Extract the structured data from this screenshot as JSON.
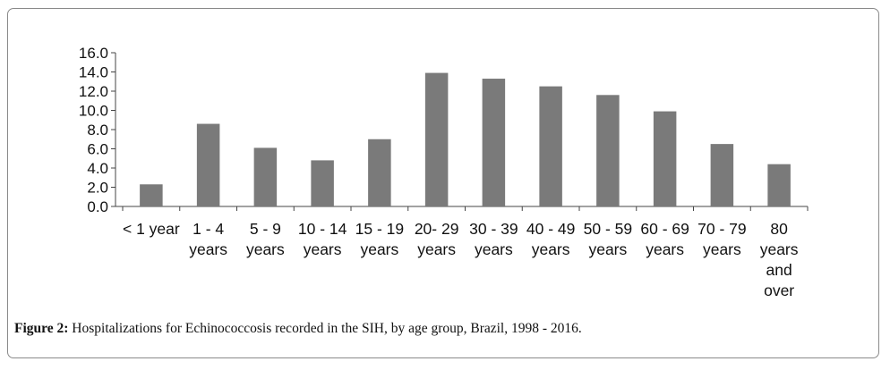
{
  "chart_data": {
    "type": "bar",
    "categories": [
      "< 1 year",
      "1 - 4 years",
      "5 - 9 years",
      "10 - 14 years",
      "15 - 19 years",
      "20- 29 years",
      "30 - 39 years",
      "40 - 49 years",
      "50 - 59 years",
      "60 - 69 years",
      "70 - 79 years",
      "80 years and over"
    ],
    "category_lines": [
      [
        "< 1 year"
      ],
      [
        "1 - 4",
        "years"
      ],
      [
        "5 - 9",
        "years"
      ],
      [
        "10 - 14",
        "years"
      ],
      [
        "15 - 19",
        "years"
      ],
      [
        "20- 29",
        "years"
      ],
      [
        "30 - 39",
        "years"
      ],
      [
        "40 - 49",
        "years"
      ],
      [
        "50 - 59",
        "years"
      ],
      [
        "60 - 69",
        "years"
      ],
      [
        "70 - 79",
        "years"
      ],
      [
        "80",
        "years",
        "and",
        "over"
      ]
    ],
    "values": [
      2.3,
      8.6,
      6.1,
      4.8,
      7.0,
      13.9,
      13.3,
      12.5,
      11.6,
      9.9,
      6.5,
      4.4
    ],
    "yticks": [
      "0.0",
      "2.0",
      "4.0",
      "6.0",
      "8.0",
      "10.0",
      "12.0",
      "14.0",
      "16.0"
    ],
    "ylim": [
      0,
      16
    ],
    "grid": false,
    "bar_color": "#7a7a7a",
    "title": "",
    "xlabel": "",
    "ylabel": ""
  },
  "caption": {
    "label": "Figure 2:",
    "text": " Hospitalizations for Echinococcosis recorded in the SIH, by age group, Brazil, 1998 - 2016."
  }
}
